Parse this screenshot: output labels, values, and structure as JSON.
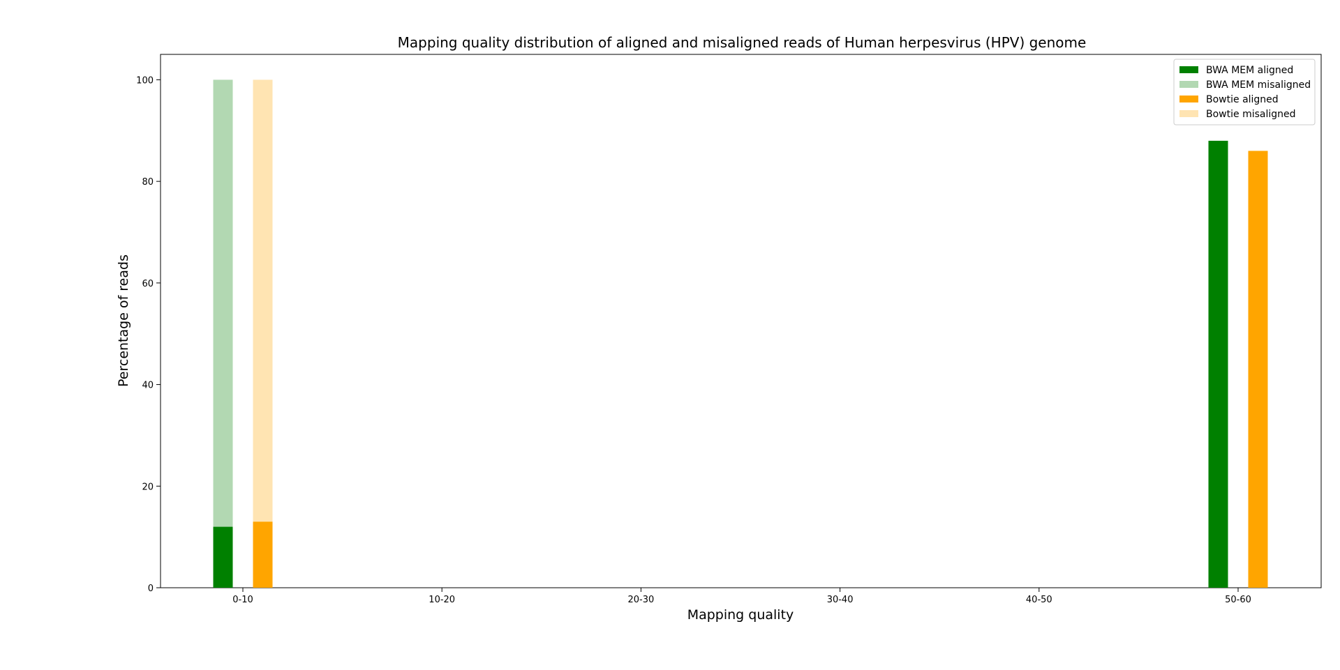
{
  "chart_data": {
    "type": "bar",
    "title": "Mapping quality distribution of aligned and misaligned reads of Human herpesvirus (HPV) genome",
    "xlabel": "Mapping quality",
    "ylabel": "Percentage of reads",
    "categories": [
      "0-10",
      "10-20",
      "20-30",
      "30-40",
      "40-50",
      "50-60"
    ],
    "ylim": [
      0,
      105
    ],
    "yticks": [
      0,
      20,
      40,
      60,
      80,
      100
    ],
    "grid": false,
    "legend_position": "top-right",
    "series": [
      {
        "name": "BWA MEM misaligned",
        "color": "#b2d8b2",
        "values": [
          100,
          0,
          0,
          0,
          0,
          0
        ]
      },
      {
        "name": "BWA MEM aligned",
        "color": "#008000",
        "values": [
          12,
          0,
          0,
          0,
          0,
          88
        ]
      },
      {
        "name": "Bowtie misaligned",
        "color": "#ffe4b2",
        "values": [
          100,
          0,
          0,
          0,
          0,
          0
        ]
      },
      {
        "name": "Bowtie aligned",
        "color": "#ffa500",
        "values": [
          13,
          0,
          0,
          0,
          0,
          86
        ]
      }
    ],
    "legend_order": [
      "BWA MEM aligned",
      "BWA MEM misaligned",
      "Bowtie aligned",
      "Bowtie misaligned"
    ]
  }
}
